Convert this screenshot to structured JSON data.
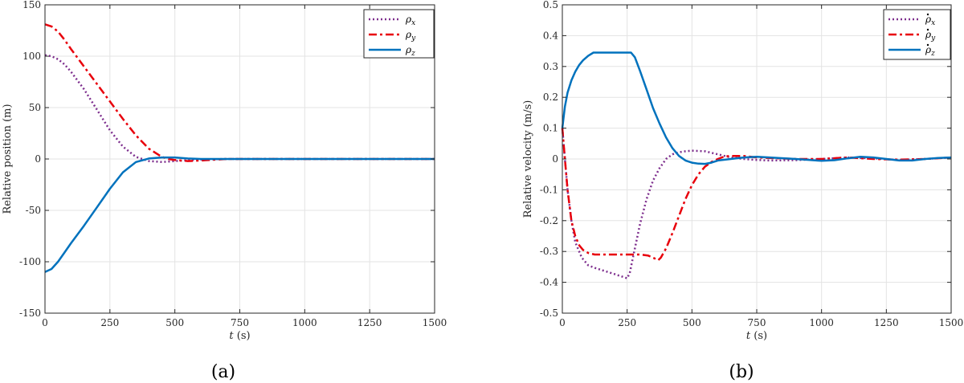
{
  "chart_data": [
    {
      "type": "line",
      "panel_label": "(a)",
      "xlabel_var": "t",
      "xlabel_unit": "(s)",
      "ylabel": "Relative position (m)",
      "xlim": [
        0,
        1500
      ],
      "ylim": [
        -150,
        150
      ],
      "x_ticks": [
        0,
        250,
        500,
        750,
        1000,
        1250,
        1500
      ],
      "y_ticks": [
        -150,
        -100,
        -50,
        0,
        50,
        100,
        150
      ],
      "grid": true,
      "legend_position": "top-right",
      "series": [
        {
          "name": "ρx",
          "base": "ρ",
          "sub": "x",
          "dot": false,
          "color": "#7E2F8E",
          "style": "dotted",
          "x": [
            0,
            25,
            50,
            75,
            100,
            150,
            200,
            250,
            300,
            350,
            400,
            450,
            500,
            600,
            700,
            800,
            900,
            1000,
            1100,
            1200,
            1300,
            1400,
            1500
          ],
          "y": [
            101,
            100,
            97,
            92,
            85,
            68,
            48,
            28,
            12,
            2,
            -2,
            -3,
            -2,
            -0.5,
            0,
            0,
            0,
            0,
            0,
            0,
            0,
            0,
            0
          ]
        },
        {
          "name": "ρy",
          "base": "ρ",
          "sub": "y",
          "dot": false,
          "color": "#E8000B",
          "style": "dashdot",
          "x": [
            0,
            25,
            50,
            75,
            100,
            150,
            200,
            250,
            300,
            350,
            400,
            450,
            475,
            500,
            550,
            600,
            700,
            800,
            900,
            1000,
            1100,
            1200,
            1300,
            1400,
            1500
          ],
          "y": [
            131,
            129,
            124,
            116,
            107,
            90,
            73,
            56,
            39,
            23,
            10,
            2,
            0,
            -1,
            -2,
            -1.5,
            0,
            0,
            0,
            0,
            0,
            0,
            0,
            0,
            0
          ]
        },
        {
          "name": "ρz",
          "base": "ρ",
          "sub": "z",
          "dot": false,
          "color": "#0072BD",
          "style": "solid",
          "x": [
            0,
            25,
            50,
            75,
            100,
            150,
            200,
            250,
            300,
            350,
            400,
            450,
            500,
            550,
            600,
            700,
            800,
            900,
            1000,
            1100,
            1200,
            1300,
            1400,
            1500
          ],
          "y": [
            -110,
            -107,
            -100,
            -91,
            -82,
            -65,
            -47,
            -29,
            -13,
            -3,
            0.5,
            1.5,
            1.5,
            0.5,
            0,
            0,
            0,
            0,
            0,
            0,
            0,
            0,
            0,
            0
          ]
        }
      ]
    },
    {
      "type": "line",
      "panel_label": "(b)",
      "xlabel_var": "t",
      "xlabel_unit": "(s)",
      "ylabel": "Relative velocity (m/s)",
      "xlim": [
        0,
        1500
      ],
      "ylim": [
        -0.5,
        0.5
      ],
      "x_ticks": [
        0,
        250,
        500,
        750,
        1000,
        1250,
        1500
      ],
      "y_ticks": [
        -0.5,
        -0.4,
        -0.3,
        -0.2,
        -0.1,
        0,
        0.1,
        0.2,
        0.3,
        0.4,
        0.5
      ],
      "grid": true,
      "legend_position": "top-right",
      "series": [
        {
          "name": "ρ̇x",
          "base": "ρ",
          "sub": "x",
          "dot": true,
          "color": "#7E2F8E",
          "style": "dotted",
          "x": [
            0,
            10,
            20,
            35,
            50,
            75,
            100,
            125,
            150,
            200,
            250,
            260,
            275,
            300,
            325,
            350,
            375,
            400,
            425,
            450,
            475,
            500,
            550,
            600,
            650,
            700,
            750,
            800,
            900,
            1000,
            1100,
            1200,
            1300,
            1400,
            1500
          ],
          "y": [
            0.1,
            0,
            -0.1,
            -0.2,
            -0.27,
            -0.32,
            -0.345,
            -0.353,
            -0.36,
            -0.373,
            -0.387,
            -0.37,
            -0.31,
            -0.21,
            -0.13,
            -0.07,
            -0.03,
            0,
            0.015,
            0.022,
            0.025,
            0.027,
            0.025,
            0.015,
            0.005,
            0,
            -0.003,
            -0.005,
            -0.004,
            0,
            0.005,
            0.002,
            -0.003,
            0,
            0.005
          ]
        },
        {
          "name": "ρ̇y",
          "base": "ρ",
          "sub": "y",
          "dot": true,
          "color": "#E8000B",
          "style": "dashdot",
          "x": [
            0,
            10,
            20,
            35,
            50,
            65,
            80,
            100,
            125,
            150,
            200,
            250,
            300,
            330,
            350,
            370,
            380,
            400,
            425,
            450,
            475,
            500,
            525,
            550,
            575,
            600,
            625,
            650,
            700,
            750,
            800,
            900,
            1000,
            1100,
            1200,
            1300,
            1400,
            1500
          ],
          "y": [
            0.1,
            0,
            -0.1,
            -0.2,
            -0.25,
            -0.28,
            -0.295,
            -0.305,
            -0.31,
            -0.31,
            -0.31,
            -0.31,
            -0.31,
            -0.313,
            -0.32,
            -0.328,
            -0.32,
            -0.29,
            -0.24,
            -0.185,
            -0.13,
            -0.085,
            -0.05,
            -0.025,
            -0.01,
            0,
            0.008,
            0.01,
            0.01,
            0.005,
            0.003,
            0,
            0,
            0.005,
            0,
            -0.002,
            0,
            0.005
          ]
        },
        {
          "name": "ρ̇z",
          "base": "ρ",
          "sub": "z",
          "dot": true,
          "color": "#0072BD",
          "style": "solid",
          "x": [
            0,
            10,
            20,
            35,
            50,
            65,
            80,
            100,
            120,
            150,
            200,
            250,
            265,
            280,
            300,
            325,
            350,
            375,
            400,
            425,
            450,
            475,
            500,
            525,
            550,
            575,
            600,
            650,
            700,
            750,
            800,
            900,
            1000,
            1050,
            1100,
            1150,
            1200,
            1250,
            1300,
            1350,
            1400,
            1450,
            1500
          ],
          "y": [
            0.1,
            0.17,
            0.215,
            0.255,
            0.283,
            0.305,
            0.32,
            0.335,
            0.345,
            0.345,
            0.345,
            0.345,
            0.345,
            0.33,
            0.285,
            0.225,
            0.165,
            0.115,
            0.07,
            0.035,
            0.01,
            -0.005,
            -0.012,
            -0.015,
            -0.016,
            -0.012,
            -0.005,
            0,
            0.005,
            0.007,
            0.005,
            0,
            -0.006,
            -0.004,
            0.002,
            0.007,
            0.005,
            0,
            -0.005,
            -0.005,
            0,
            0.003,
            0.005
          ]
        }
      ]
    }
  ]
}
